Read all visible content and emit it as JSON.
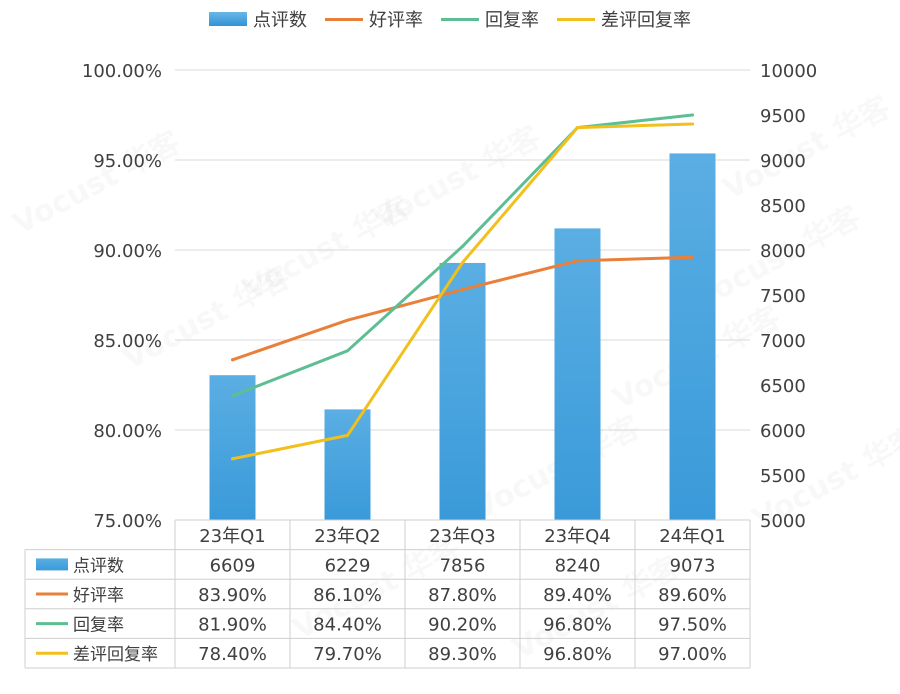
{
  "chart_data": {
    "type": "bar",
    "categories": [
      "23年Q1",
      "23年Q2",
      "23年Q3",
      "23年Q4",
      "24年Q1"
    ],
    "series": [
      {
        "name": "点评数",
        "type": "bar",
        "axis": "right",
        "values": [
          6609,
          6229,
          7856,
          8240,
          9073
        ],
        "labels": [
          "6609",
          "6229",
          "7856",
          "8240",
          "9073"
        ],
        "color": "#3a9ad9"
      },
      {
        "name": "好评率",
        "type": "line",
        "axis": "left",
        "values": [
          83.9,
          86.1,
          87.8,
          89.4,
          89.6
        ],
        "labels": [
          "83.90%",
          "86.10%",
          "87.80%",
          "89.40%",
          "89.60%"
        ],
        "color": "#e8803a"
      },
      {
        "name": "回复率",
        "type": "line",
        "axis": "left",
        "values": [
          81.9,
          84.4,
          90.2,
          96.8,
          97.5
        ],
        "labels": [
          "81.90%",
          "84.40%",
          "90.20%",
          "96.80%",
          "97.50%"
        ],
        "color": "#5dbe93"
      },
      {
        "name": "差评回复率",
        "type": "line",
        "axis": "left",
        "values": [
          78.4,
          79.7,
          89.3,
          96.8,
          97.0
        ],
        "labels": [
          "78.40%",
          "79.70%",
          "89.30%",
          "96.80%",
          "97.00%"
        ],
        "color": "#f2c01c"
      }
    ],
    "left_axis": {
      "ylim": [
        75,
        100
      ],
      "ticks": [
        "75.00%",
        "80.00%",
        "85.00%",
        "90.00%",
        "95.00%",
        "100.00%"
      ]
    },
    "right_axis": {
      "ylim": [
        5000,
        10000
      ],
      "ticks": [
        "5000",
        "5500",
        "6000",
        "6500",
        "7000",
        "7500",
        "8000",
        "8500",
        "9000",
        "9500",
        "10000"
      ]
    },
    "grid": true,
    "legend_position": "top",
    "data_table": true,
    "watermark": "Vocust 华客"
  }
}
